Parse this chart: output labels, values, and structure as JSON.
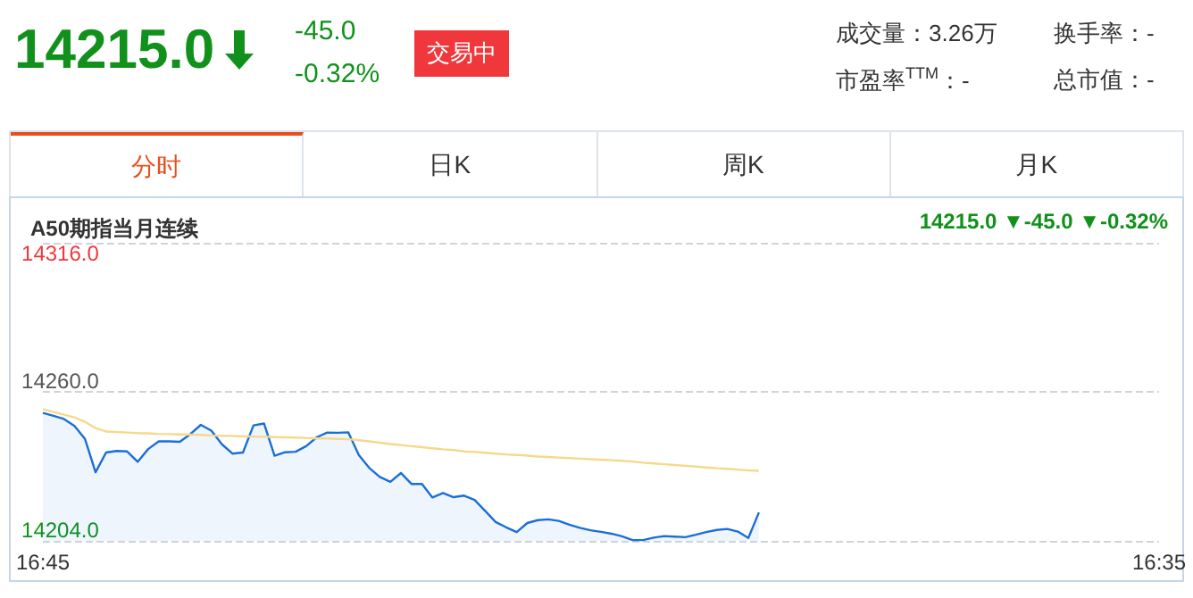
{
  "chart_data": {
    "type": "area",
    "title": "A50期指当月连续",
    "annotations": [
      "14215.0",
      "-45.0",
      "-0.32%",
      "交易中",
      "成交量：3.26万",
      "换手率：-",
      "市盈率$^{TTM}$：-",
      "总市值：-",
      "分时",
      "日K",
      "周K",
      "月K",
      "14215.0 ▼-45.0 ▼-0.32%"
    ],
    "categories": [
      "16:45",
      null,
      null,
      null,
      null,
      null,
      null,
      null,
      null,
      null,
      null,
      null,
      null,
      null,
      null,
      null,
      null,
      null,
      null,
      null,
      null,
      null,
      null,
      null,
      null,
      null,
      null,
      null,
      null,
      null,
      null,
      null,
      null,
      null,
      null,
      null,
      null,
      null,
      null,
      null,
      null,
      null,
      null,
      null,
      null,
      null,
      null,
      null,
      null,
      null,
      null,
      null,
      null,
      null,
      null,
      null,
      null,
      null,
      null,
      null,
      null,
      null,
      null,
      null,
      null,
      null,
      null,
      null,
      null,
      null,
      null,
      null,
      null,
      null,
      null,
      null,
      null,
      null,
      null,
      null,
      null,
      null,
      null,
      null,
      null,
      null,
      null,
      null,
      null,
      null,
      null,
      null,
      null,
      null,
      null,
      null,
      null,
      null,
      null,
      null,
      null,
      null,
      null,
      null,
      null,
      null,
      "16:35"
    ],
    "ylim": [
      14204,
      14316
    ],
    "yticks": [
      {
        "value": 14204,
        "label": "14204.0"
      },
      {
        "value": 14260,
        "label": "14260.0"
      },
      {
        "value": 14316,
        "label": "14316.0"
      }
    ],
    "grid": "y",
    "marker": "none",
    "series": [
      {
        "color": "#1a6fd6",
        "values": [
          14252.1,
          14251.0,
          14249.8,
          14247.2,
          14242.3,
          14229.8,
          14237.2,
          14237.8,
          14237.6,
          14233.7,
          14238.5,
          14241.4,
          14241.4,
          14241.2,
          14244.1,
          14247.6,
          14245.4,
          14240.3,
          14236.8,
          14237.2,
          14247.4,
          14248.1,
          14236.0,
          14237.3,
          14237.5,
          14239.6,
          14242.9,
          14244.7,
          14244.6,
          14244.8,
          14236.3,
          14231.4,
          14228.0,
          14226.2,
          14229.5,
          14225.4,
          14225.4,
          14220.3,
          14222.0,
          14220.4,
          14221.0,
          14219.4,
          14215.3,
          14211.1,
          14209.1,
          14207.3,
          14210.7,
          14211.8,
          14212.1,
          14211.5,
          14210.1,
          14208.9,
          14208.0,
          14207.4,
          14206.7,
          14205.7,
          14204.3,
          14204.3,
          14205.2,
          14205.8,
          14205.6,
          14205.4,
          14206.3,
          14207.3,
          14208.1,
          14208.5,
          14207.5,
          14205.1,
          14214.7,
          null,
          null,
          null,
          null,
          null,
          null,
          null,
          null,
          null,
          null,
          null,
          null,
          null,
          null,
          null,
          null,
          null,
          null,
          null,
          null,
          null,
          null,
          null,
          null,
          null,
          null,
          null,
          null,
          null,
          null,
          null,
          null,
          null,
          null,
          null,
          null,
          null,
          null
        ]
      },
      {
        "type": "line",
        "color": "#f5d98a",
        "values": [
          14253.5,
          14252.4,
          14251.4,
          14250.4,
          14248.7,
          14246.4,
          14245.1,
          14244.9,
          14244.7,
          14244.5,
          14244.4,
          14244.2,
          14244.1,
          14244.0,
          14243.9,
          14243.8,
          14243.6,
          14243.5,
          14243.4,
          14243.3,
          14243.2,
          14243.1,
          14243.0,
          14242.9,
          14242.8,
          14242.7,
          14242.5,
          14242.5,
          14242.3,
          14242.2,
          14241.8,
          14241.4,
          14240.9,
          14240.4,
          14240.0,
          14239.6,
          14239.2,
          14238.8,
          14238.4,
          14238.1,
          14237.6,
          14237.4,
          14237.1,
          14236.8,
          14236.5,
          14236.3,
          14236.0,
          14235.7,
          14235.5,
          14235.3,
          14235.1,
          14234.9,
          14234.7,
          14234.5,
          14234.3,
          14234.1,
          14233.8,
          14233.4,
          14233.1,
          14232.8,
          14232.5,
          14232.2,
          14231.9,
          14231.6,
          14231.3,
          14231.1,
          14230.8,
          14230.5,
          14230.3,
          null,
          null,
          null,
          null,
          null,
          null,
          null,
          null,
          null,
          null,
          null,
          null,
          null,
          null,
          null,
          null,
          null,
          null,
          null,
          null,
          null,
          null,
          null,
          null,
          null,
          null,
          null,
          null,
          null,
          null,
          null,
          null,
          null,
          null,
          null,
          null,
          null,
          null
        ]
      }
    ]
  }
}
